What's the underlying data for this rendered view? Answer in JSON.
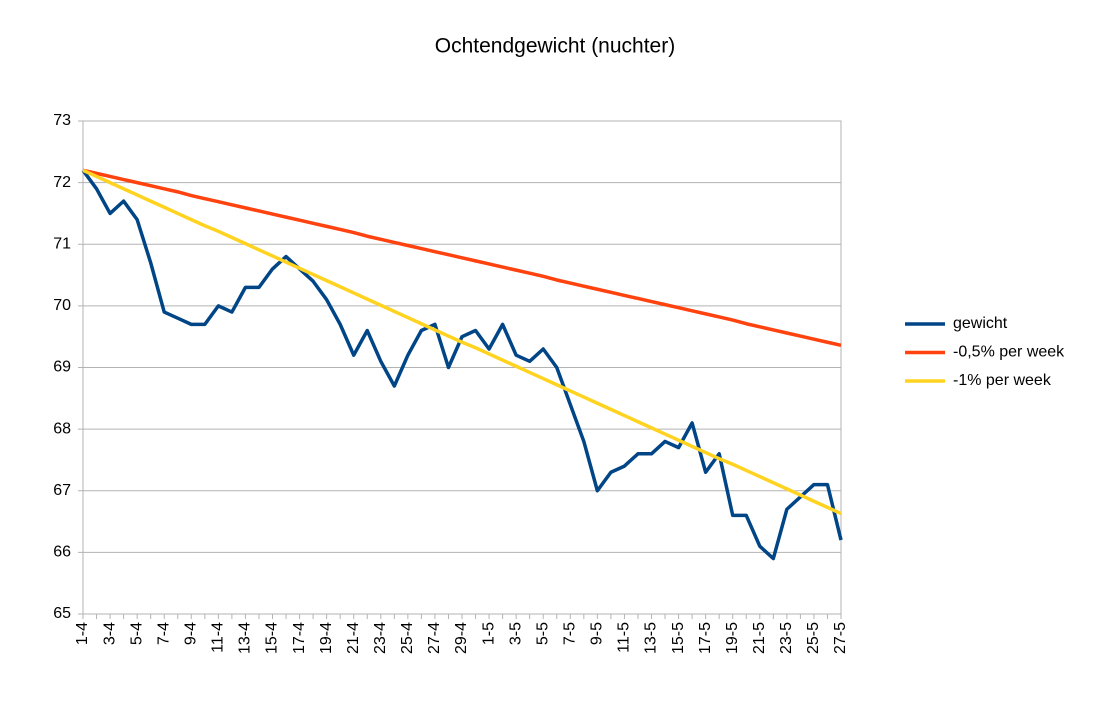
{
  "chart_data": {
    "type": "line",
    "title": "Ochtendgewicht (nuchter)",
    "categories": [
      "1-4",
      null,
      "3-4",
      null,
      "5-4",
      null,
      "7-4",
      null,
      "9-4",
      null,
      "11-4",
      null,
      "13-4",
      null,
      "15-4",
      null,
      "17-4",
      null,
      "19-4",
      null,
      "21-4",
      null,
      "23-4",
      null,
      "25-4",
      null,
      "27-4",
      null,
      "29-4",
      null,
      "1-5",
      null,
      "3-5",
      null,
      "5-5",
      null,
      "7-5",
      null,
      "9-5",
      null,
      "11-5",
      null,
      "13-5",
      null,
      "15-5",
      null,
      "17-5",
      null,
      "19-5",
      null,
      "21-5",
      null,
      "23-5",
      null,
      "25-5",
      null,
      "27-5"
    ],
    "series": [
      {
        "name": "gewicht",
        "color": "#004586",
        "values": [
          72.2,
          71.9,
          71.5,
          71.7,
          71.4,
          70.7,
          69.9,
          69.8,
          69.7,
          69.7,
          70.0,
          69.9,
          70.3,
          70.3,
          70.6,
          70.8,
          70.6,
          70.4,
          70.1,
          69.7,
          69.2,
          69.6,
          69.1,
          68.7,
          69.2,
          69.6,
          69.7,
          69.0,
          69.5,
          69.6,
          69.3,
          69.7,
          69.2,
          69.1,
          69.3,
          69.0,
          68.4,
          67.8,
          67.0,
          67.3,
          67.4,
          67.6,
          67.6,
          67.8,
          67.7,
          68.1,
          67.3,
          67.6,
          66.6,
          66.6,
          66.1,
          65.9,
          66.7,
          66.9,
          67.1,
          67.1,
          66.2
        ]
      },
      {
        "name": "-0,5% per week",
        "color": "#ff420e",
        "values": [
          72.2,
          72.15,
          72.1,
          72.05,
          72.0,
          71.95,
          71.9,
          71.85,
          71.79,
          71.74,
          71.69,
          71.64,
          71.59,
          71.54,
          71.49,
          71.44,
          71.39,
          71.34,
          71.29,
          71.24,
          71.19,
          71.13,
          71.08,
          71.03,
          70.98,
          70.93,
          70.88,
          70.83,
          70.78,
          70.73,
          70.68,
          70.63,
          70.58,
          70.53,
          70.48,
          70.42,
          70.37,
          70.32,
          70.27,
          70.22,
          70.17,
          70.12,
          70.07,
          70.02,
          69.97,
          69.92,
          69.87,
          69.82,
          69.77,
          69.71,
          69.66,
          69.61,
          69.56,
          69.51,
          69.46,
          69.41,
          69.36
        ]
      },
      {
        "name": "-1% per week",
        "color": "#ffd320",
        "values": [
          72.2,
          72.1,
          72.0,
          71.9,
          71.8,
          71.7,
          71.6,
          71.5,
          71.4,
          71.3,
          71.21,
          71.11,
          71.01,
          70.91,
          70.81,
          70.71,
          70.61,
          70.51,
          70.41,
          70.31,
          70.21,
          70.11,
          70.01,
          69.91,
          69.81,
          69.71,
          69.61,
          69.51,
          69.41,
          69.32,
          69.22,
          69.12,
          69.02,
          68.92,
          68.82,
          68.72,
          68.62,
          68.52,
          68.42,
          68.32,
          68.22,
          68.12,
          68.02,
          67.92,
          67.82,
          67.72,
          67.62,
          67.52,
          67.43,
          67.33,
          67.23,
          67.13,
          67.03,
          66.93,
          66.83,
          66.73,
          66.63
        ]
      }
    ],
    "ylim": [
      65,
      73
    ],
    "yticks": [
      65,
      66,
      67,
      68,
      69,
      70,
      71,
      72,
      73
    ],
    "grid": true,
    "legend": "right"
  }
}
